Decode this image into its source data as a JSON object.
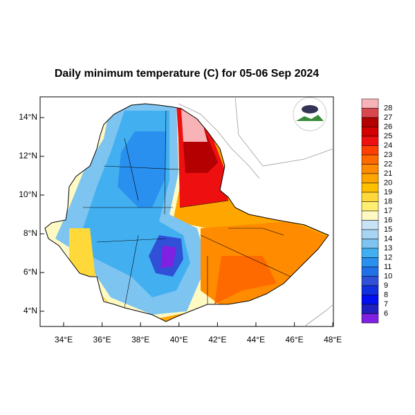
{
  "title": "Daily minimum temperature (C) for 05-06 Sep 2024",
  "lon_ticks": [
    {
      "value": 34,
      "label": "34°E"
    },
    {
      "value": 36,
      "label": "36°E"
    },
    {
      "value": 38,
      "label": "38°E"
    },
    {
      "value": 40,
      "label": "40°E"
    },
    {
      "value": 42,
      "label": "42°E"
    },
    {
      "value": 44,
      "label": "44°E"
    },
    {
      "value": 46,
      "label": "46°E"
    },
    {
      "value": 48,
      "label": "48°E"
    }
  ],
  "lat_ticks": [
    {
      "value": 14,
      "label": "14°N"
    },
    {
      "value": 12,
      "label": "12°N"
    },
    {
      "value": 10,
      "label": "10°N"
    },
    {
      "value": 8,
      "label": "8°N"
    },
    {
      "value": 6,
      "label": "6°N"
    },
    {
      "value": 4,
      "label": "4°N"
    }
  ],
  "colorbar": {
    "labels": [
      28,
      27,
      26,
      25,
      24,
      23,
      22,
      21,
      20,
      19,
      18,
      17,
      16,
      15,
      14,
      13,
      12,
      11,
      10,
      9,
      8,
      7,
      6
    ],
    "colors": [
      "#f7b3b6",
      "#d9484e",
      "#b40000",
      "#d20000",
      "#ee1010",
      "#ff4000",
      "#ff6a00",
      "#ff8c00",
      "#ffa600",
      "#ffc000",
      "#ffd83a",
      "#ffee72",
      "#fffac4",
      "#c8e3f6",
      "#a8d4f2",
      "#7ec4f0",
      "#42b0f0",
      "#2a90f0",
      "#2070e8",
      "#3050d8",
      "#1030e0",
      "#0010f0",
      "#2020c0",
      "#8020e0"
    ]
  }
}
